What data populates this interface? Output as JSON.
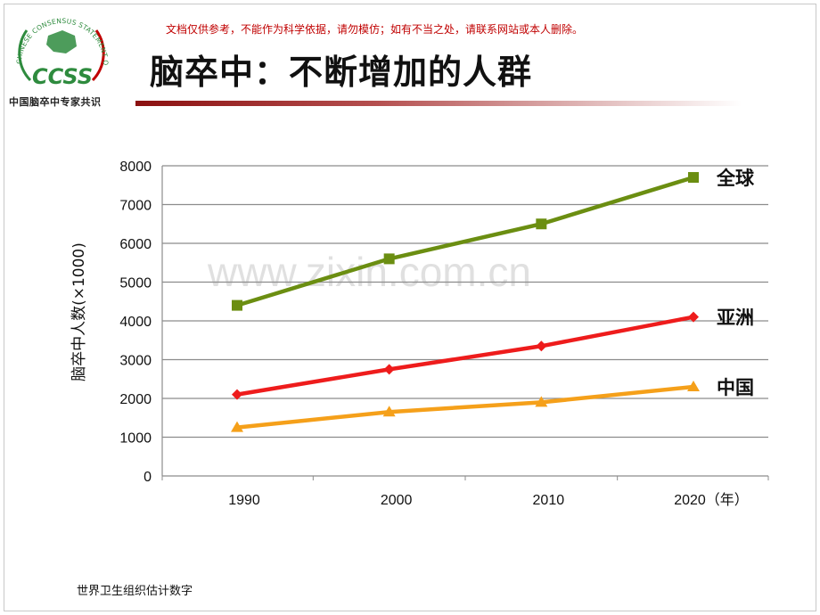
{
  "header": {
    "logo_text": "CCSS",
    "logo_arc_text": "CHINESE CONSENSUS STATEMENT OF STROKE",
    "logo_caption": "中国脑卒中专家共识",
    "notice": "文档仅供参考，不能作为科学依据，请勿模仿；如有不当之处，请联系网站或本人删除。",
    "title": "脑卒中：不断增加的人群"
  },
  "watermark": "www.zixin.com.cn",
  "source_note": "世界卫生组织估计数字",
  "colors": {
    "global": "#6b8e11",
    "asia": "#ee1c1c",
    "china": "#f5a01a",
    "logo_green": "#2e8b3e",
    "accent_red": "#c00000"
  },
  "chart_data": {
    "type": "line",
    "categories": [
      "1990",
      "2000",
      "2010",
      "2020（年）"
    ],
    "x_values": [
      1990,
      2000,
      2010,
      2020
    ],
    "ylabel": "脑卒中人数(×1000)",
    "ylim": [
      0,
      8000
    ],
    "y_ticks": [
      "0",
      "1000",
      "2000",
      "3000",
      "4000",
      "5000",
      "6000",
      "7000",
      "8000"
    ],
    "grid": true,
    "series": [
      {
        "name": "全球",
        "values": [
          4400,
          5600,
          6500,
          7700
        ],
        "marker": "square",
        "color": "#6b8e11"
      },
      {
        "name": "亚洲",
        "values": [
          2100,
          2750,
          3350,
          4100
        ],
        "marker": "diamond",
        "color": "#ee1c1c"
      },
      {
        "name": "中国",
        "values": [
          1250,
          1650,
          1900,
          2300
        ],
        "marker": "triangle",
        "color": "#f5a01a"
      }
    ]
  }
}
